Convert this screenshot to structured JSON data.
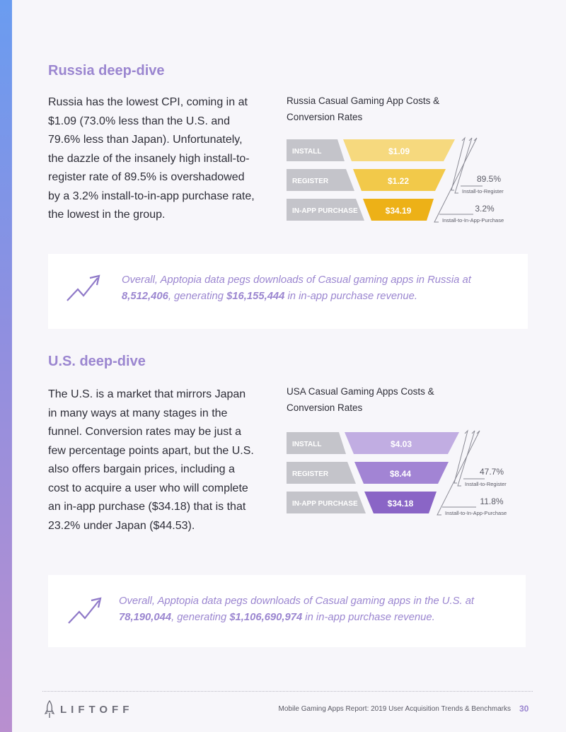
{
  "colors": {
    "accent": "#9b86d0",
    "russia_install": "#f6d97e",
    "russia_register": "#f2c94a",
    "russia_purchase": "#edb117",
    "us_install": "#c1ade2",
    "us_register": "#a284d4",
    "us_purchase": "#8a65c6",
    "label_gray": "#c4c4ca"
  },
  "russia": {
    "heading": "Russia deep-dive",
    "paragraph": "Russia has the lowest CPI, coming in at $1.09 (73.0% less than the U.S. and 79.6% less than Japan). Unfortunately, the dazzle of the insanely high install-to-register rate of 89.5% is overshadowed by a 3.2% install-to-in-app purchase rate, the lowest in the group.",
    "chart_title": "Russia Casual Gaming App Costs & Conversion Rates",
    "callout": {
      "text_1": "Overall, Apptopia data pegs downloads of Casual gaming apps in Russia at ",
      "downloads": "8,512,406",
      "text_2": ", generating ",
      "revenue": "$16,155,444",
      "text_3": " in in-app purchase revenue."
    }
  },
  "us": {
    "heading": "U.S. deep-dive",
    "paragraph": "The U.S. is a market that mirrors Japan in many ways at many stages in the funnel. Conversion rates may be just a few percentage points apart, but the U.S. also offers bargain prices, including a cost to acquire a user who will complete an in-app purchase ($34.18) that is that 23.2% under Japan ($44.53).",
    "chart_title": "USA Casual Gaming Apps Costs & Conversion Rates",
    "callout": {
      "text_1": "Overall, Apptopia data pegs downloads of Casual gaming apps in the U.S. at ",
      "downloads": "78,190,044",
      "text_2": ", generating ",
      "revenue": "$1,106,690,974",
      "text_3": " in in-app purchase revenue."
    }
  },
  "chart_data": [
    {
      "type": "funnel",
      "title": "Russia Casual Gaming App Costs & Conversion Rates",
      "stages": [
        "INSTALL",
        "REGISTER",
        "IN-APP PURCHASE"
      ],
      "values": [
        "$1.09",
        "$1.22",
        "$34.19"
      ],
      "conversions": [
        {
          "value": "89.5%",
          "label": "Install-to-Register"
        },
        {
          "value": "3.2%",
          "label": "Install-to-In-App-Purchase"
        }
      ]
    },
    {
      "type": "funnel",
      "title": "USA Casual Gaming Apps Costs & Conversion Rates",
      "stages": [
        "INSTALL",
        "REGISTER",
        "IN-APP PURCHASE"
      ],
      "values": [
        "$4.03",
        "$8.44",
        "$34.18"
      ],
      "conversions": [
        {
          "value": "47.7%",
          "label": "Install-to-Register"
        },
        {
          "value": "11.8%",
          "label": "Install-to-In-App-Purchase"
        }
      ]
    }
  ],
  "footer": {
    "logo": "LIFTOFF",
    "report_title": "Mobile Gaming Apps Report: 2019 User Acquisition Trends & Benchmarks",
    "page_number": "30"
  }
}
